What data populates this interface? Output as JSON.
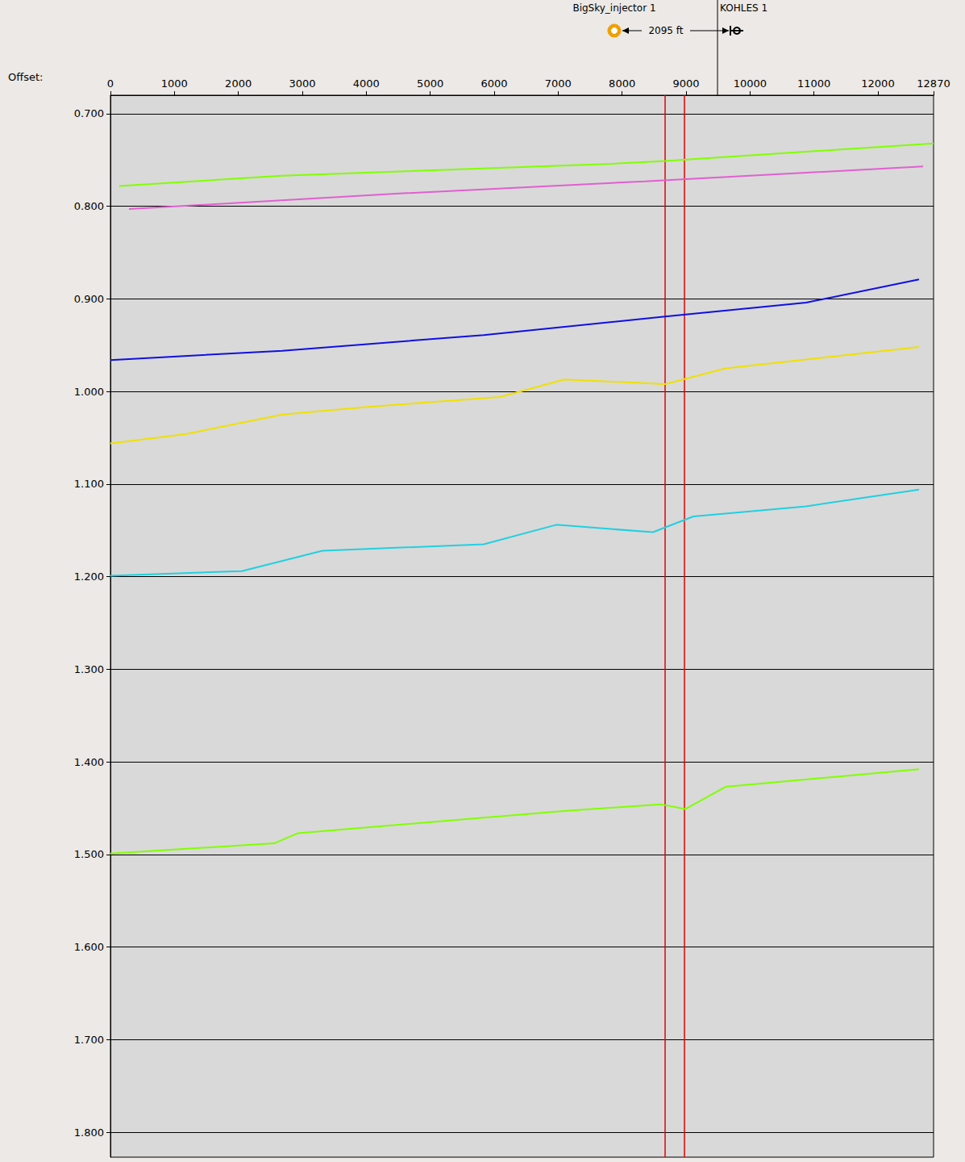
{
  "chart_data": {
    "type": "line",
    "x_label": "Offset:",
    "xlim": [
      0,
      12870
    ],
    "xticks": [
      0,
      1000,
      2000,
      3000,
      4000,
      5000,
      6000,
      7000,
      8000,
      9000,
      10000,
      11000,
      12000,
      12870
    ],
    "ylim": [
      0.68,
      1.827
    ],
    "yticks": [
      {
        "value": 0.7,
        "label": "0.700"
      },
      {
        "value": 0.8,
        "label": "0.800"
      },
      {
        "value": 0.9,
        "label": "0.900"
      },
      {
        "value": 1.0,
        "label": "1.000"
      },
      {
        "value": 1.1,
        "label": "1.100"
      },
      {
        "value": 1.2,
        "label": "1.200"
      },
      {
        "value": 1.3,
        "label": "1.300"
      },
      {
        "value": 1.4,
        "label": "1.400"
      },
      {
        "value": 1.5,
        "label": "1.500"
      },
      {
        "value": 1.6,
        "label": "1.600"
      },
      {
        "value": 1.7,
        "label": "1.700"
      },
      {
        "value": 1.8,
        "label": "1.800"
      }
    ],
    "grid": true,
    "series": [
      {
        "color": "#80ff00",
        "x": [
          139,
          2685,
          7853,
          8673,
          12870
        ],
        "values": [
          0.778,
          0.767,
          0.754,
          0.751,
          0.732
        ]
      },
      {
        "color": "#e060d0",
        "x": [
          290,
          4576,
          8357,
          12706
        ],
        "values": [
          0.803,
          0.786,
          0.773,
          0.757
        ]
      },
      {
        "color": "#1010e0",
        "x": [
          0,
          2685,
          5836,
          8673,
          10878,
          12643
        ],
        "values": [
          0.966,
          0.956,
          0.939,
          0.919,
          0.904,
          0.879
        ]
      },
      {
        "color": "#f0e000",
        "x": [
          0,
          1172,
          2685,
          3946,
          6088,
          7097,
          8673,
          9618,
          12643
        ],
        "values": [
          1.056,
          1.046,
          1.025,
          1.017,
          1.006,
          0.987,
          0.992,
          0.975,
          0.952
        ]
      },
      {
        "color": "#20d0e0",
        "x": [
          0,
          2055,
          3315,
          5836,
          6971,
          8483,
          9114,
          10878,
          12643
        ],
        "values": [
          1.199,
          1.194,
          1.172,
          1.165,
          1.144,
          1.152,
          1.135,
          1.124,
          1.106
        ]
      },
      {
        "color": "#80ff00",
        "x": [
          0,
          2559,
          2937,
          7097,
          8610,
          8988,
          9618,
          12643
        ],
        "values": [
          1.499,
          1.488,
          1.477,
          1.453,
          1.446,
          1.451,
          1.427,
          1.408
        ]
      }
    ],
    "vertical_lines": {
      "color": "#e00000",
      "x": [
        8673,
        8975
      ]
    },
    "wells": [
      {
        "name": "BigSky_injector 1",
        "x": 7878,
        "marker": "circle",
        "color": "#f0a000"
      },
      {
        "name": "KOHLES 1",
        "x": 9492,
        "marker": "cross",
        "color": "#000000"
      }
    ],
    "well_distance_label": "2095 ft"
  }
}
